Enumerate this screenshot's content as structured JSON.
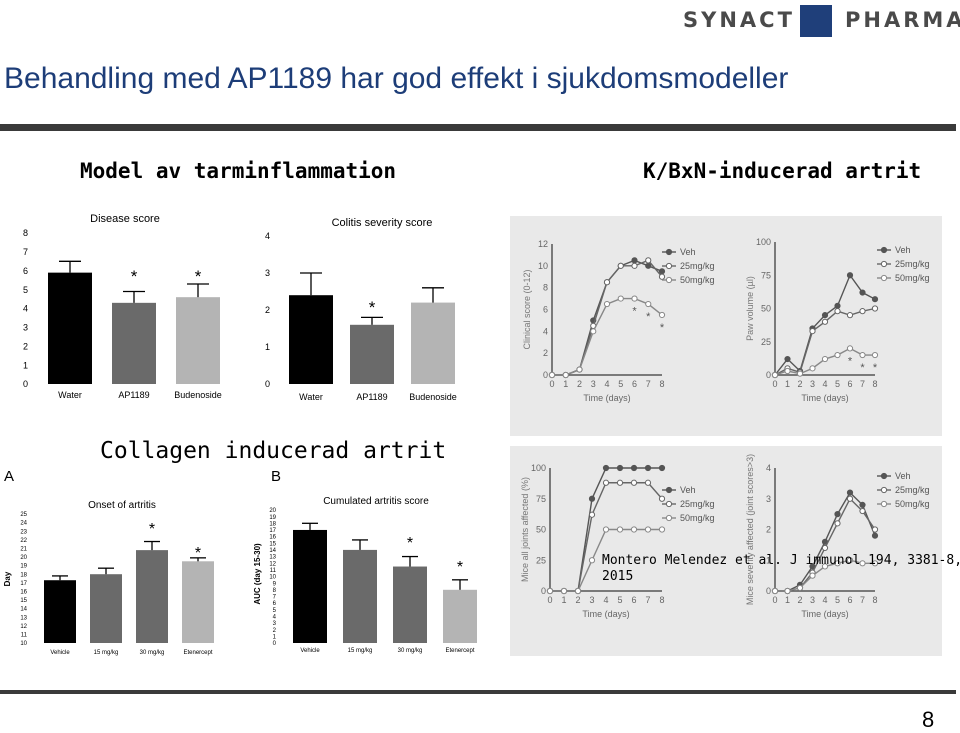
{
  "header": {
    "logo_left": "SYNACT",
    "logo_right": "PHARMA",
    "title": "Behandling med AP1189 har god effekt i sjukdomsmodeller"
  },
  "sections": {
    "left_heading": "Model av tarminflammation",
    "right_heading": "K/BxN-inducerad artrit",
    "collagen_heading": "Collagen inducerad artrit",
    "panel_a": "A",
    "panel_b": "B"
  },
  "citation": {
    "line1": "Montero Melendez et al. J immunol 194, 3381-8,",
    "line2": "2015"
  },
  "page_number": "8",
  "colors": {
    "brand_blue": "#1f3f7a",
    "title_blue": "#1d3d78",
    "bar_black": "#000000",
    "bar_dark": "#6a6a6a",
    "bar_light": "#b4b4b4"
  },
  "chart_data": [
    {
      "id": "disease-score",
      "type": "bar",
      "title": "Disease score",
      "xlabel": "",
      "ylabel": "",
      "ylim": [
        0,
        8
      ],
      "yticks": [
        "0",
        "1",
        "2",
        "3",
        "4",
        "5",
        "6",
        "7",
        "8"
      ],
      "categories": [
        "Water",
        "AP1189",
        "Budenoside"
      ],
      "values": [
        5.9,
        4.3,
        4.6
      ],
      "errors": [
        0.6,
        0.6,
        0.7
      ],
      "significance": [
        "",
        "*",
        "*"
      ],
      "colors": [
        "#000000",
        "#6a6a6a",
        "#b4b4b4"
      ]
    },
    {
      "id": "colitis-severity",
      "type": "bar",
      "title": "Colitis severity score",
      "xlabel": "",
      "ylabel": "",
      "ylim": [
        0,
        4
      ],
      "yticks": [
        "0",
        "1",
        "2",
        "3",
        "4"
      ],
      "categories": [
        "Water",
        "AP1189",
        "Budenoside"
      ],
      "values": [
        2.4,
        1.6,
        2.2
      ],
      "errors": [
        0.6,
        0.2,
        0.4
      ],
      "significance": [
        "",
        "*",
        ""
      ],
      "colors": [
        "#000000",
        "#6a6a6a",
        "#b4b4b4"
      ]
    },
    {
      "id": "onset-of-arthritis",
      "type": "bar",
      "title": "Onset of artritis",
      "xlabel": "",
      "ylabel": "Day",
      "ylim": [
        10,
        25
      ],
      "yticks": [
        "10",
        "11",
        "12",
        "13",
        "14",
        "15",
        "16",
        "17",
        "18",
        "19",
        "20",
        "21",
        "22",
        "23",
        "24",
        "25"
      ],
      "categories": [
        "Vehicle",
        "15 mg/kg",
        "30 mg/kg",
        "Etenercept"
      ],
      "values": [
        17.3,
        18.0,
        20.8,
        19.5
      ],
      "errors": [
        0.5,
        0.7,
        1.0,
        0.4
      ],
      "significance": [
        "",
        "",
        "*",
        "*"
      ],
      "colors": [
        "#000000",
        "#6a6a6a",
        "#6a6a6a",
        "#b4b4b4"
      ]
    },
    {
      "id": "cumulated-arthritis",
      "type": "bar",
      "title": "Cumulated artritis score",
      "xlabel": "",
      "ylabel": "AUC (day 15-30)",
      "ylim": [
        0,
        20
      ],
      "yticks": [
        "0",
        "1",
        "2",
        "3",
        "4",
        "5",
        "6",
        "7",
        "8",
        "9",
        "10",
        "11",
        "12",
        "13",
        "14",
        "15",
        "16",
        "17",
        "18",
        "19",
        "20"
      ],
      "categories": [
        "Vehicle",
        "15 mg/kg",
        "30 mg/kg",
        "Etenercept"
      ],
      "values": [
        17,
        14,
        11.5,
        8
      ],
      "errors": [
        1.0,
        1.5,
        1.5,
        1.5
      ],
      "significance": [
        "",
        "",
        "*",
        "*"
      ],
      "colors": [
        "#000000",
        "#6a6a6a",
        "#6a6a6a",
        "#b4b4b4"
      ]
    },
    {
      "id": "clinical-score",
      "type": "line",
      "title": "",
      "xlabel": "Time (days)",
      "ylabel": "Clinical score (0-12)",
      "x": [
        0,
        1,
        2,
        3,
        4,
        5,
        6,
        7,
        8
      ],
      "xlim": [
        0,
        8
      ],
      "ylim": [
        0,
        12
      ],
      "yticks": [
        "0",
        "2",
        "4",
        "6",
        "8",
        "10",
        "12"
      ],
      "xticks": [
        "0",
        "1",
        "2",
        "3",
        "4",
        "5",
        "6",
        "7",
        "8"
      ],
      "legend": [
        "Veh",
        "25mg/kg",
        "50mg/kg"
      ],
      "series": [
        {
          "name": "Veh",
          "values": [
            0,
            0,
            0.5,
            5,
            8.5,
            10,
            10.5,
            10,
            9.5
          ]
        },
        {
          "name": "25mg/kg",
          "values": [
            0,
            0,
            0.5,
            4.5,
            8.5,
            10,
            10,
            10.5,
            9
          ]
        },
        {
          "name": "50mg/kg",
          "values": [
            0,
            0,
            0.5,
            4,
            6.5,
            7,
            7,
            6.5,
            5.5
          ]
        }
      ],
      "significance": [
        "",
        "",
        "",
        "",
        "",
        "",
        "*",
        "*",
        "*"
      ]
    },
    {
      "id": "paw-volume",
      "type": "line",
      "title": "",
      "xlabel": "Time (days)",
      "ylabel": "Paw volume (µl)",
      "x": [
        0,
        1,
        2,
        3,
        4,
        5,
        6,
        7,
        8
      ],
      "xlim": [
        0,
        8
      ],
      "ylim": [
        0,
        100
      ],
      "yticks": [
        "0",
        "25",
        "50",
        "75",
        "100"
      ],
      "xticks": [
        "0",
        "1",
        "2",
        "3",
        "4",
        "5",
        "6",
        "7",
        "8"
      ],
      "legend": [
        "Veh",
        "25mg/kg",
        "50mg/kg"
      ],
      "series": [
        {
          "name": "Veh",
          "values": [
            0,
            12,
            3,
            35,
            45,
            52,
            75,
            62,
            57
          ]
        },
        {
          "name": "25mg/kg",
          "values": [
            0,
            5,
            2,
            33,
            40,
            48,
            45,
            48,
            50
          ]
        },
        {
          "name": "50mg/kg",
          "values": [
            0,
            3,
            1,
            5,
            12,
            15,
            20,
            15,
            15
          ]
        }
      ],
      "significance": [
        "",
        "",
        "",
        "",
        "",
        "",
        "*",
        "*",
        "*"
      ]
    },
    {
      "id": "joints-affected",
      "type": "line",
      "title": "",
      "xlabel": "Time (days)",
      "ylabel": "Mice all joints affected (%)",
      "x": [
        0,
        1,
        2,
        3,
        4,
        5,
        6,
        7,
        8
      ],
      "xlim": [
        0,
        8
      ],
      "ylim": [
        0,
        100
      ],
      "yticks": [
        "0",
        "25",
        "50",
        "75",
        "100"
      ],
      "xticks": [
        "0",
        "1",
        "2",
        "3",
        "4",
        "5",
        "6",
        "7",
        "8"
      ],
      "legend": [
        "Veh",
        "25mg/kg",
        "50mg/kg"
      ],
      "series": [
        {
          "name": "Veh",
          "values": [
            0,
            0,
            0,
            75,
            100,
            100,
            100,
            100,
            100
          ]
        },
        {
          "name": "25mg/kg",
          "values": [
            0,
            0,
            0,
            62,
            88,
            88,
            88,
            88,
            75
          ]
        },
        {
          "name": "50mg/kg",
          "values": [
            0,
            0,
            0,
            25,
            50,
            50,
            50,
            50,
            50
          ]
        }
      ]
    },
    {
      "id": "severity-affected",
      "type": "line",
      "title": "",
      "xlabel": "Time (days)",
      "ylabel": "Mice severity affected (joint scores>3)",
      "x": [
        0,
        1,
        2,
        3,
        4,
        5,
        6,
        7,
        8
      ],
      "xlim": [
        0,
        8
      ],
      "ylim": [
        0,
        4
      ],
      "yticks": [
        "0",
        "1",
        "2",
        "3",
        "4"
      ],
      "xticks": [
        "0",
        "1",
        "2",
        "3",
        "4",
        "5",
        "6",
        "7",
        "8"
      ],
      "legend": [
        "Veh",
        "25mg/kg",
        "50mg/kg"
      ],
      "series": [
        {
          "name": "Veh",
          "values": [
            0,
            0,
            0.2,
            0.8,
            1.6,
            2.5,
            3.2,
            2.8,
            1.8
          ]
        },
        {
          "name": "25mg/kg",
          "values": [
            0,
            0,
            0.1,
            0.6,
            1.4,
            2.2,
            3.0,
            2.6,
            2.0
          ]
        },
        {
          "name": "50mg/kg",
          "values": [
            0,
            0,
            0.1,
            0.5,
            0.8,
            0.9,
            1.0,
            0.9,
            0.9
          ]
        }
      ]
    }
  ]
}
